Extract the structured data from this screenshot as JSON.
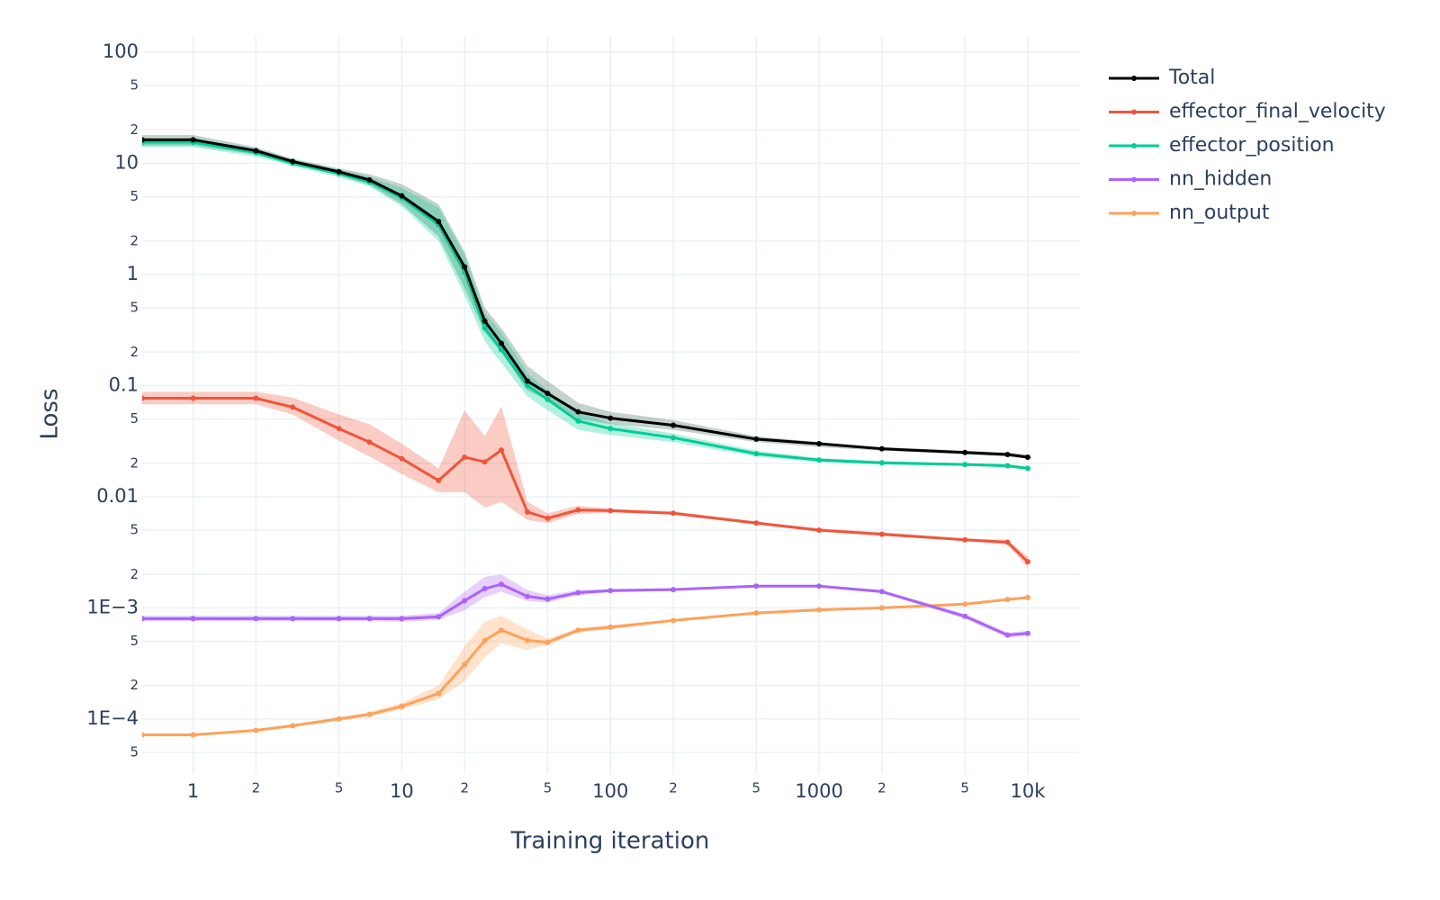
{
  "chart_data": {
    "type": "line",
    "x_label": "Training iteration",
    "y_label": "Loss",
    "xlog": true,
    "ylog": true,
    "grid": true,
    "legend": "right",
    "xlim": [
      0.57,
      17800
    ],
    "ylim": [
      3.2e-05,
      140
    ],
    "xticks": [
      1,
      2,
      5,
      10,
      {
        "value": 20,
        "label": "2"
      },
      {
        "value": 50,
        "label": "5"
      },
      100,
      {
        "value": 200,
        "label": "2"
      },
      {
        "value": 500,
        "label": "5"
      },
      1000,
      {
        "value": 2000,
        "label": "2"
      },
      {
        "value": 5000,
        "label": "5"
      },
      {
        "value": 10000,
        "label": "10k"
      }
    ],
    "yticks": [
      100,
      {
        "value": 50,
        "label": "5"
      },
      {
        "value": 20,
        "label": "2"
      },
      10,
      5,
      2,
      1,
      {
        "value": 0.5,
        "label": "5"
      },
      {
        "value": 0.2,
        "label": "2"
      },
      0.1,
      {
        "value": 0.05,
        "label": "5"
      },
      {
        "value": 0.02,
        "label": "2"
      },
      0.01,
      {
        "value": 0.005,
        "label": "5"
      },
      {
        "value": 0.002,
        "label": "2"
      },
      {
        "value": 0.001,
        "label": "1E−3"
      },
      {
        "value": 0.0005,
        "label": "5"
      },
      {
        "value": 0.0002,
        "label": "2"
      },
      {
        "value": 0.0001,
        "label": "1E−4"
      },
      {
        "value": 5e-05,
        "label": "5"
      }
    ],
    "x": [
      0.57,
      1,
      2,
      3,
      5,
      7,
      10,
      15,
      20,
      25,
      30,
      40,
      50,
      70,
      100,
      200,
      500,
      1000,
      2000,
      5000,
      8000,
      10000
    ],
    "series": [
      {
        "name": "Total",
        "color": "#000000",
        "band_color": "#3a6b55",
        "values": [
          16.3,
          16.3,
          13,
          10.4,
          8.4,
          7.1,
          5.1,
          3.0,
          1.17,
          0.38,
          0.24,
          0.11,
          0.085,
          0.058,
          0.051,
          0.044,
          0.033,
          0.03,
          0.027,
          0.025,
          0.024,
          0.0227
        ],
        "lower": [
          14.5,
          14.5,
          12,
          9.8,
          7.8,
          6.4,
          4.3,
          2.2,
          0.75,
          0.3,
          0.2,
          0.09,
          0.075,
          0.05,
          0.045,
          0.04,
          0.031,
          0.028,
          0.026,
          0.024,
          0.023,
          0.022
        ],
        "upper": [
          18,
          18,
          14,
          11,
          9,
          8,
          6.5,
          4.3,
          1.6,
          0.5,
          0.33,
          0.15,
          0.11,
          0.07,
          0.058,
          0.049,
          0.035,
          0.031,
          0.028,
          0.026,
          0.025,
          0.024
        ]
      },
      {
        "name": "effector_final_velocity",
        "color": "#ef553b",
        "band_color": "#ef553b",
        "values": [
          0.077,
          0.077,
          0.077,
          0.064,
          0.041,
          0.031,
          0.022,
          0.014,
          0.0227,
          0.0206,
          0.0263,
          0.0073,
          0.0064,
          0.0076,
          0.0075,
          0.0071,
          0.0058,
          0.005,
          0.0046,
          0.0041,
          0.0039,
          0.0026
        ],
        "lower": [
          0.068,
          0.068,
          0.068,
          0.055,
          0.032,
          0.023,
          0.016,
          0.011,
          0.011,
          0.008,
          0.009,
          0.0062,
          0.0058,
          0.007,
          0.0072,
          0.0069,
          0.0056,
          0.0049,
          0.0045,
          0.004,
          0.0037,
          0.0023
        ],
        "upper": [
          0.088,
          0.088,
          0.088,
          0.078,
          0.055,
          0.045,
          0.03,
          0.018,
          0.06,
          0.035,
          0.065,
          0.009,
          0.0071,
          0.0083,
          0.0078,
          0.0074,
          0.006,
          0.0052,
          0.0048,
          0.0042,
          0.0041,
          0.0029
        ]
      },
      {
        "name": "effector_position",
        "color": "#00cc96",
        "band_color": "#00cc96",
        "values": [
          15.5,
          15.5,
          12.5,
          10,
          8.1,
          6.8,
          4.9,
          2.8,
          1.05,
          0.33,
          0.21,
          0.1,
          0.075,
          0.048,
          0.041,
          0.034,
          0.0244,
          0.0214,
          0.0202,
          0.0195,
          0.019,
          0.018
        ],
        "lower": [
          14,
          14,
          11.5,
          9.5,
          7.5,
          6.2,
          4.1,
          2,
          0.65,
          0.25,
          0.16,
          0.08,
          0.06,
          0.04,
          0.036,
          0.031,
          0.023,
          0.0205,
          0.0195,
          0.019,
          0.0183,
          0.0175
        ],
        "upper": [
          17,
          17,
          13.5,
          10.8,
          8.8,
          7.6,
          6,
          4,
          1.5,
          0.45,
          0.3,
          0.13,
          0.09,
          0.058,
          0.046,
          0.037,
          0.026,
          0.0223,
          0.021,
          0.02,
          0.0197,
          0.0187
        ]
      },
      {
        "name": "nn_hidden",
        "color": "#ab63fa",
        "band_color": "#ab63fa",
        "values": [
          0.0008,
          0.0008,
          0.0008,
          0.0008,
          0.0008,
          0.0008,
          0.0008,
          0.00083,
          0.00116,
          0.00149,
          0.00163,
          0.00127,
          0.0012,
          0.00137,
          0.00143,
          0.00146,
          0.00157,
          0.00157,
          0.0014,
          0.00084,
          0.00057,
          0.00059
        ],
        "lower": [
          0.00076,
          0.00076,
          0.00076,
          0.00076,
          0.00076,
          0.00076,
          0.00075,
          0.00078,
          0.00095,
          0.00125,
          0.0014,
          0.00115,
          0.00112,
          0.0013,
          0.00138,
          0.00142,
          0.00153,
          0.00153,
          0.00136,
          0.0008,
          0.00054,
          0.00056
        ],
        "upper": [
          0.00085,
          0.00085,
          0.00085,
          0.00085,
          0.00085,
          0.00085,
          0.00085,
          0.0009,
          0.0014,
          0.0019,
          0.002,
          0.00145,
          0.0013,
          0.00145,
          0.00148,
          0.0015,
          0.00161,
          0.00161,
          0.00145,
          0.00088,
          0.0006,
          0.00062
        ]
      },
      {
        "name": "nn_output",
        "color": "#ffa15a",
        "band_color": "#ffa15a",
        "values": [
          7.2e-05,
          7.2e-05,
          7.9e-05,
          8.7e-05,
          0.0001,
          0.00011,
          0.00013,
          0.00017,
          0.00031,
          0.00051,
          0.00063,
          0.00051,
          0.00049,
          0.00063,
          0.00067,
          0.00077,
          0.0009,
          0.00096,
          0.001,
          0.00108,
          0.00119,
          0.00124
        ],
        "lower": [
          7e-05,
          7e-05,
          7.7e-05,
          8.5e-05,
          9.7e-05,
          0.000105,
          0.000122,
          0.00015,
          0.00022,
          0.00036,
          0.00048,
          0.00042,
          0.00046,
          0.0006,
          0.00064,
          0.00075,
          0.00088,
          0.00094,
          0.00098,
          0.00106,
          0.00117,
          0.00122
        ],
        "upper": [
          7.4e-05,
          7.4e-05,
          8.1e-05,
          9e-05,
          0.000104,
          0.000116,
          0.00014,
          0.0002,
          0.00045,
          0.00075,
          0.00085,
          0.00064,
          0.00053,
          0.00066,
          0.0007,
          0.00079,
          0.00092,
          0.00098,
          0.00102,
          0.0011,
          0.00121,
          0.00126
        ]
      }
    ]
  }
}
